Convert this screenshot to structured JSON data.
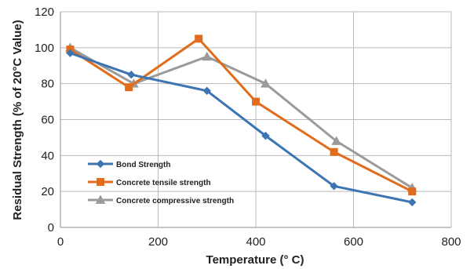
{
  "chart_data": {
    "type": "line",
    "xlabel": "Temperature (° C)",
    "ylabel": "Residual Strength (% of 20°C Value)",
    "xlim": [
      0,
      800
    ],
    "ylim": [
      0,
      120
    ],
    "xticks": [
      0,
      200,
      400,
      600,
      800
    ],
    "yticks": [
      0,
      20,
      40,
      60,
      80,
      100,
      120
    ],
    "x_tick_labels": [
      "0",
      "200",
      "400",
      "600",
      "800"
    ],
    "y_tick_labels": [
      "0",
      "20",
      "40",
      "60",
      "80",
      "100",
      "120"
    ],
    "grid": true,
    "legend_position": "lower-left inside plot",
    "series": [
      {
        "name": "Bond Strength",
        "color": "#3d74b2",
        "marker": "diamond",
        "x": [
          20,
          145,
          300,
          420,
          560,
          720
        ],
        "y": [
          97,
          85,
          76,
          51,
          23,
          14
        ]
      },
      {
        "name": "Concrete tensile strength",
        "color": "#e06c1c",
        "marker": "square",
        "x": [
          20,
          140,
          283,
          400,
          560,
          720
        ],
        "y": [
          99,
          78,
          105,
          70,
          42,
          20
        ]
      },
      {
        "name": "Concrete compressive strength",
        "color": "#9b9b9b",
        "marker": "triangle",
        "x": [
          20,
          150,
          300,
          420,
          565,
          720
        ],
        "y": [
          100,
          80,
          95,
          80,
          48,
          22
        ]
      }
    ]
  }
}
